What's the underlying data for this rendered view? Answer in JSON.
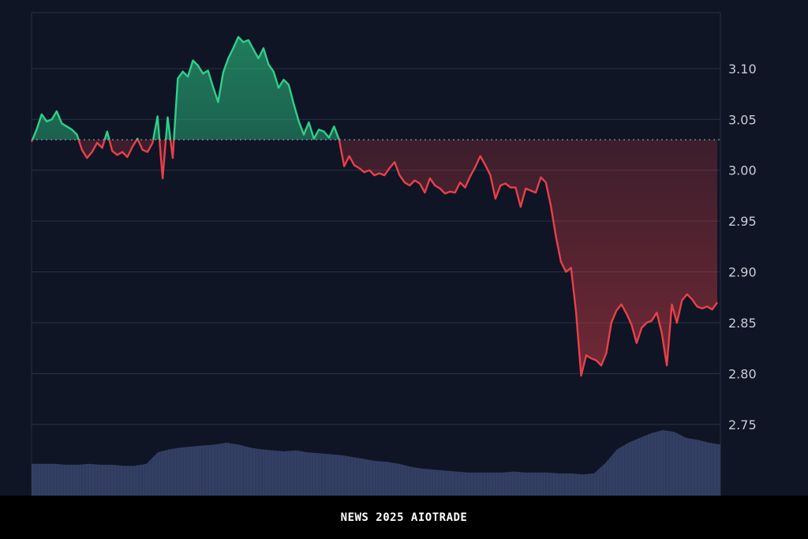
{
  "caption": "NEWS 2025 AIOTRADE",
  "colors": {
    "background": "#0f1524",
    "grid": "#2a3142",
    "up": "#2ed08a",
    "down": "#e8404a",
    "baseline": "#9aa0ab",
    "volume": "#3a4670",
    "axis_text": "#c9ccd4"
  },
  "chart_data": {
    "type": "area",
    "title": "",
    "xlabel": "",
    "ylabel": "",
    "y_ticks": [
      "3.10",
      "3.05",
      "3.00",
      "2.95",
      "2.90",
      "2.85",
      "2.80",
      "2.75"
    ],
    "ylim": [
      2.68,
      3.155
    ],
    "baseline": 3.03,
    "grid": true,
    "y_axis_position": "right",
    "series": [
      {
        "values": [
          3.028,
          3.04,
          3.055,
          3.048,
          3.05,
          3.058,
          3.046,
          3.043,
          3.04,
          3.035,
          3.02,
          3.012,
          3.018,
          3.027,
          3.022,
          3.038,
          3.019,
          3.015,
          3.018,
          3.013,
          3.023,
          3.031,
          3.02,
          3.018,
          3.027,
          3.053,
          2.992,
          3.052,
          3.012,
          3.09,
          3.097,
          3.092,
          3.108,
          3.103,
          3.095,
          3.098,
          3.082,
          3.067,
          3.096,
          3.11,
          3.12,
          3.131,
          3.126,
          3.128,
          3.119,
          3.11,
          3.12,
          3.104,
          3.097,
          3.081,
          3.089,
          3.084,
          3.065,
          3.048,
          3.035,
          3.047,
          3.031,
          3.04,
          3.038,
          3.032,
          3.043,
          3.03,
          3.004,
          3.014,
          3.005,
          3.002,
          2.998,
          3.0,
          2.995,
          2.997,
          2.995,
          3.002,
          3.008,
          2.995,
          2.988,
          2.985,
          2.99,
          2.987,
          2.978,
          2.992,
          2.985,
          2.982,
          2.977,
          2.979,
          2.978,
          2.988,
          2.983,
          2.994,
          3.003,
          3.014,
          3.005,
          2.995,
          2.972,
          2.985,
          2.987,
          2.983,
          2.983,
          2.964,
          2.982,
          2.98,
          2.978,
          2.993,
          2.988,
          2.965,
          2.935,
          2.91,
          2.9,
          2.904,
          2.86,
          2.798,
          2.818,
          2.815,
          2.813,
          2.808,
          2.82,
          2.85,
          2.862,
          2.868,
          2.859,
          2.848,
          2.83,
          2.845,
          2.85,
          2.852,
          2.86,
          2.84,
          2.808,
          2.868,
          2.85,
          2.872,
          2.878,
          2.873,
          2.866,
          2.864,
          2.866,
          2.863,
          2.87
        ]
      }
    ],
    "volume": [
      0.33,
      0.33,
      0.33,
      0.32,
      0.32,
      0.33,
      0.32,
      0.32,
      0.31,
      0.31,
      0.33,
      0.45,
      0.48,
      0.5,
      0.51,
      0.52,
      0.53,
      0.55,
      0.53,
      0.5,
      0.48,
      0.47,
      0.46,
      0.47,
      0.45,
      0.44,
      0.43,
      0.42,
      0.4,
      0.38,
      0.36,
      0.35,
      0.33,
      0.3,
      0.28,
      0.27,
      0.26,
      0.25,
      0.24,
      0.24,
      0.24,
      0.24,
      0.25,
      0.24,
      0.24,
      0.24,
      0.23,
      0.23,
      0.22,
      0.23,
      0.34,
      0.48,
      0.55,
      0.6,
      0.65,
      0.68,
      0.66,
      0.6,
      0.58,
      0.55,
      0.53
    ]
  }
}
